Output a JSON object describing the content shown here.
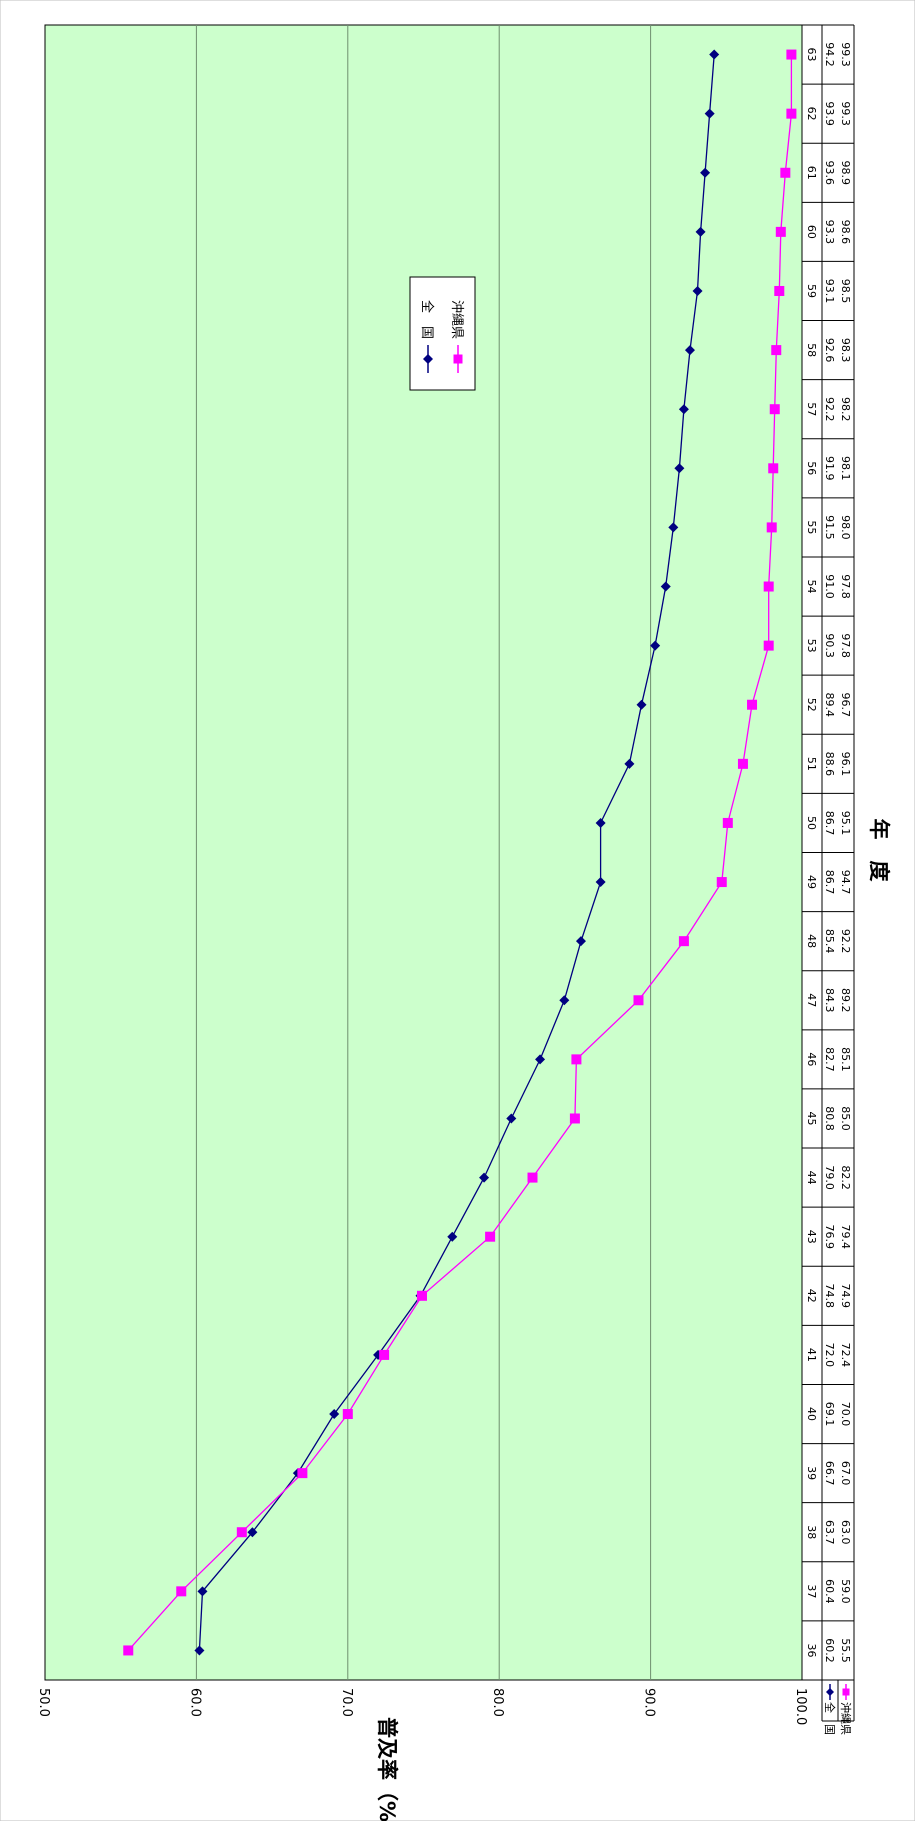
{
  "chart_data": {
    "type": "line",
    "orientation": "rotated-90-clockwise",
    "title": "",
    "xlabel": "年　度",
    "ylabel": "普及率（%）",
    "categories": [
      "36",
      "37",
      "38",
      "39",
      "40",
      "41",
      "42",
      "43",
      "44",
      "45",
      "46",
      "47",
      "48",
      "49",
      "50",
      "51",
      "52",
      "53",
      "54",
      "55",
      "56",
      "57",
      "58",
      "59",
      "60",
      "61",
      "62",
      "63"
    ],
    "ylim": [
      50,
      100
    ],
    "yticks": [
      "50.0",
      "60.0",
      "70.0",
      "80.0",
      "90.0",
      "100.0"
    ],
    "grid": true,
    "legend": "upper-middle",
    "plot_bg": "#ccffcc",
    "series": [
      {
        "name": "全　国",
        "color": "#000080",
        "marker": "diamond",
        "values": [
          60.2,
          60.4,
          63.7,
          66.7,
          69.1,
          72.0,
          74.8,
          76.9,
          79.0,
          80.8,
          82.7,
          84.3,
          85.4,
          86.7,
          86.7,
          88.6,
          89.4,
          90.3,
          91.0,
          91.5,
          91.9,
          92.2,
          92.6,
          93.1,
          93.3,
          93.6,
          93.9,
          94.2
        ]
      },
      {
        "name": "沖縄県",
        "color": "#ff00ff",
        "marker": "square",
        "values": [
          55.5,
          59.0,
          63.0,
          67.0,
          70.0,
          72.4,
          74.9,
          79.4,
          82.2,
          85.0,
          85.1,
          89.2,
          92.2,
          94.7,
          95.1,
          96.1,
          96.7,
          97.8,
          97.8,
          98.0,
          98.1,
          98.2,
          98.3,
          98.5,
          98.6,
          98.9,
          99.3,
          99.3
        ]
      }
    ],
    "data_table": true
  }
}
